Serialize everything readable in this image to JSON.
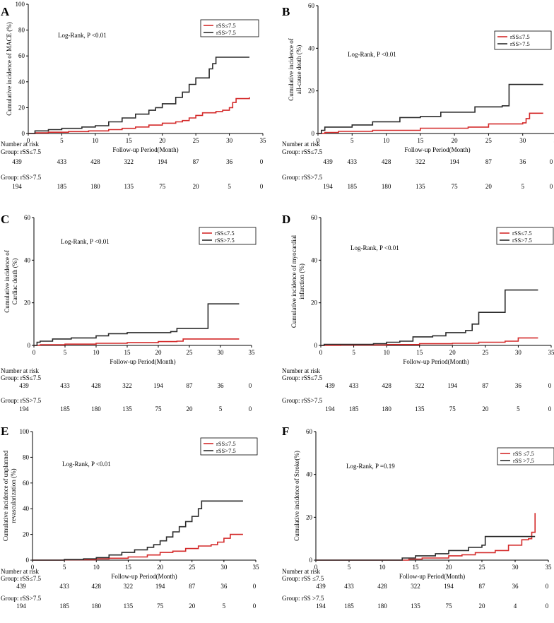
{
  "xlabel": "Follow-up Period(Month)",
  "risk_header": "Number at risk",
  "colors": {
    "low": "#d42a2a",
    "high": "#2b2b2b"
  },
  "chart_data": [
    {
      "id": "A",
      "type": "line",
      "ylabel": [
        "Cumulative incidence of MACE (%)"
      ],
      "annotation": "Log-Rank, P <0.01",
      "legend_position": "top-right",
      "xlim": [
        0,
        35
      ],
      "ylim": [
        0,
        100
      ],
      "xticks": [
        0,
        5,
        10,
        15,
        20,
        25,
        30,
        35
      ],
      "yticks": [
        0,
        20,
        40,
        60,
        80,
        100
      ],
      "series": [
        {
          "name": "rSS≤7.5",
          "color": "low",
          "points": [
            [
              0,
              0
            ],
            [
              1,
              0.5
            ],
            [
              3,
              1
            ],
            [
              6,
              1.5
            ],
            [
              9,
              2
            ],
            [
              12,
              3
            ],
            [
              14,
              4
            ],
            [
              16,
              5
            ],
            [
              18,
              6.5
            ],
            [
              20,
              8
            ],
            [
              22,
              9
            ],
            [
              23,
              10
            ],
            [
              24,
              12
            ],
            [
              25,
              14
            ],
            [
              26,
              16
            ],
            [
              28,
              17
            ],
            [
              29,
              18
            ],
            [
              30,
              20
            ],
            [
              30.5,
              24
            ],
            [
              31,
              27
            ],
            [
              33,
              28
            ]
          ]
        },
        {
          "name": "rSS>7.5",
          "color": "high",
          "points": [
            [
              0,
              0
            ],
            [
              1,
              2
            ],
            [
              3,
              3
            ],
            [
              5,
              4
            ],
            [
              8,
              5
            ],
            [
              10,
              6
            ],
            [
              12,
              9
            ],
            [
              14,
              12
            ],
            [
              16,
              15
            ],
            [
              18,
              18
            ],
            [
              19,
              20
            ],
            [
              20,
              23
            ],
            [
              22,
              28
            ],
            [
              23,
              32
            ],
            [
              24,
              38
            ],
            [
              25,
              43
            ],
            [
              26,
              43
            ],
            [
              27,
              50
            ],
            [
              27.5,
              54
            ],
            [
              28,
              59
            ],
            [
              33,
              59
            ]
          ]
        }
      ],
      "risk_groups": [
        {
          "label": "Group: rSS≤7.5",
          "values": [
            439,
            433,
            428,
            322,
            194,
            87,
            36,
            0
          ]
        },
        {
          "label": "Group: rSS>7.5",
          "values": [
            194,
            185,
            180,
            135,
            75,
            20,
            5,
            0
          ]
        }
      ]
    },
    {
      "id": "B",
      "type": "line",
      "ylabel": [
        "Cumulative incidence of",
        "all-cause death (%)"
      ],
      "annotation": "Log-Rank, P <0.01",
      "legend_position": "top-right",
      "xlim": [
        0,
        35
      ],
      "ylim": [
        0,
        60
      ],
      "xticks": [
        0,
        5,
        10,
        15,
        20,
        25,
        30,
        35
      ],
      "yticks": [
        0,
        20,
        40,
        60
      ],
      "series": [
        {
          "name": "rSS≤7.5",
          "color": "low",
          "points": [
            [
              0,
              0
            ],
            [
              1,
              0.5
            ],
            [
              3,
              1
            ],
            [
              8,
              1.5
            ],
            [
              15,
              2.5
            ],
            [
              22,
              3
            ],
            [
              25,
              4.5
            ],
            [
              30,
              5
            ],
            [
              30.5,
              7
            ],
            [
              31,
              9.5
            ],
            [
              33,
              9.5
            ]
          ]
        },
        {
          "name": "rSS>7.5",
          "color": "high",
          "points": [
            [
              0,
              0
            ],
            [
              0.5,
              1.5
            ],
            [
              1,
              3
            ],
            [
              5,
              4
            ],
            [
              8,
              5.5
            ],
            [
              12,
              7.5
            ],
            [
              15,
              8
            ],
            [
              18,
              10
            ],
            [
              23,
              12.5
            ],
            [
              27,
              13
            ],
            [
              28,
              23
            ],
            [
              33,
              23
            ]
          ]
        }
      ],
      "risk_groups": [
        {
          "label": "Group: rSS≤7.5",
          "values": [
            439,
            433,
            428,
            322,
            194,
            87,
            36,
            0
          ]
        },
        {
          "label": "Group: rSS>7.5",
          "values": [
            194,
            185,
            180,
            135,
            75,
            20,
            5,
            0
          ]
        }
      ]
    },
    {
      "id": "C",
      "type": "line",
      "ylabel": [
        "Cumulative incidence of",
        "Cardiac death (%)"
      ],
      "annotation": "Log-Rank, P <0.01",
      "legend_position": "top-right",
      "xlim": [
        0,
        35
      ],
      "ylim": [
        0,
        60
      ],
      "xticks": [
        0,
        5,
        10,
        15,
        20,
        25,
        30,
        35
      ],
      "yticks": [
        0,
        20,
        40,
        60
      ],
      "series": [
        {
          "name": "rSS≤7.5",
          "color": "low",
          "points": [
            [
              0,
              0
            ],
            [
              1,
              0.3
            ],
            [
              5,
              0.6
            ],
            [
              10,
              1
            ],
            [
              15,
              1.3
            ],
            [
              20,
              1.8
            ],
            [
              23,
              2
            ],
            [
              24,
              3
            ],
            [
              33,
              3
            ]
          ]
        },
        {
          "name": "rSS>7.5",
          "color": "high",
          "points": [
            [
              0,
              0
            ],
            [
              0.5,
              1.5
            ],
            [
              1,
              2
            ],
            [
              3,
              3
            ],
            [
              6,
              3.5
            ],
            [
              10,
              4.5
            ],
            [
              12,
              5.5
            ],
            [
              15,
              6
            ],
            [
              22,
              6.5
            ],
            [
              23,
              8
            ],
            [
              27,
              8
            ],
            [
              28,
              19.5
            ],
            [
              33,
              19.5
            ]
          ]
        }
      ],
      "risk_groups": [
        {
          "label": "Group: rSS≤7.5",
          "values": [
            439,
            433,
            428,
            322,
            194,
            87,
            36,
            0
          ]
        },
        {
          "label": "Group: rSS>7.5",
          "values": [
            194,
            185,
            180,
            135,
            75,
            20,
            5,
            0
          ]
        }
      ]
    },
    {
      "id": "D",
      "type": "line",
      "ylabel": [
        "Cumulative incidence of myocardial",
        "infarction (%)"
      ],
      "annotation": "Log-Rank, P <0.01",
      "legend_position": "top-right",
      "xlim": [
        0,
        35
      ],
      "ylim": [
        0,
        60
      ],
      "xticks": [
        0,
        5,
        10,
        15,
        20,
        25,
        30,
        35
      ],
      "yticks": [
        0,
        20,
        40,
        60
      ],
      "series": [
        {
          "name": "rSS≤7.5",
          "color": "low",
          "points": [
            [
              0,
              0
            ],
            [
              3,
              0.2
            ],
            [
              10,
              0.4
            ],
            [
              15,
              0.8
            ],
            [
              20,
              1
            ],
            [
              24,
              1.5
            ],
            [
              28,
              2
            ],
            [
              30,
              3.5
            ],
            [
              33,
              3.5
            ]
          ]
        },
        {
          "name": "rSS>7.5",
          "color": "high",
          "points": [
            [
              0,
              0
            ],
            [
              0.5,
              0.5
            ],
            [
              8,
              0.8
            ],
            [
              10,
              1.5
            ],
            [
              12,
              2
            ],
            [
              14,
              4
            ],
            [
              17,
              4.5
            ],
            [
              19,
              6
            ],
            [
              22,
              7
            ],
            [
              23,
              10
            ],
            [
              24,
              15.5
            ],
            [
              27,
              15.5
            ],
            [
              28,
              26
            ],
            [
              33,
              26
            ]
          ]
        }
      ],
      "risk_groups": [
        {
          "label": "Group: rSS≤7.5",
          "values": [
            439,
            433,
            428,
            322,
            194,
            87,
            36,
            0
          ]
        },
        {
          "label": "Group: rSS>7.5",
          "values": [
            194,
            185,
            180,
            135,
            75,
            20,
            5,
            0
          ]
        }
      ]
    },
    {
      "id": "E",
      "type": "line",
      "ylabel": [
        "Cumulative incidence of unplanned",
        "revascularization (%)"
      ],
      "annotation": "Log-Rank, P <0.01",
      "legend_position": "top-right",
      "xlim": [
        0,
        35
      ],
      "ylim": [
        0,
        100
      ],
      "xticks": [
        0,
        5,
        10,
        15,
        20,
        25,
        30,
        35
      ],
      "yticks": [
        0,
        20,
        40,
        60,
        80,
        100
      ],
      "series": [
        {
          "name": "rSS≤7.5",
          "color": "low",
          "points": [
            [
              0,
              0
            ],
            [
              5,
              0.3
            ],
            [
              10,
              1
            ],
            [
              12,
              1.5
            ],
            [
              15,
              2.5
            ],
            [
              18,
              4
            ],
            [
              20,
              6
            ],
            [
              22,
              7
            ],
            [
              24,
              9
            ],
            [
              26,
              11
            ],
            [
              28,
              12
            ],
            [
              29,
              14
            ],
            [
              30,
              17
            ],
            [
              31,
              20
            ],
            [
              33,
              20
            ]
          ]
        },
        {
          "name": "rSS>7.5",
          "color": "high",
          "points": [
            [
              0,
              0
            ],
            [
              5,
              0.5
            ],
            [
              8,
              1
            ],
            [
              10,
              2
            ],
            [
              12,
              4
            ],
            [
              14,
              6
            ],
            [
              16,
              8
            ],
            [
              18,
              10
            ],
            [
              19,
              12
            ],
            [
              20,
              15
            ],
            [
              21,
              18
            ],
            [
              22,
              22
            ],
            [
              23,
              26
            ],
            [
              24,
              30
            ],
            [
              25,
              34
            ],
            [
              26,
              40
            ],
            [
              26.5,
              46
            ],
            [
              33,
              46
            ]
          ]
        }
      ],
      "risk_groups": [
        {
          "label": "Group: rSS≤7.5",
          "values": [
            439,
            433,
            428,
            322,
            194,
            87,
            36,
            0
          ]
        },
        {
          "label": "Group: rSS>7.5",
          "values": [
            194,
            185,
            180,
            135,
            75,
            20,
            5,
            0
          ]
        }
      ]
    },
    {
      "id": "F",
      "type": "line",
      "ylabel": [
        "Cumulative incidence of Stroke(%)"
      ],
      "annotation": "Log-Rank, P =0.19",
      "legend_position": "top-right",
      "xlim": [
        0,
        35
      ],
      "ylim": [
        0,
        60
      ],
      "xticks": [
        0,
        5,
        10,
        15,
        20,
        25,
        30,
        35
      ],
      "yticks": [
        0,
        20,
        40,
        60
      ],
      "series": [
        {
          "name": "rSS ≤7.5",
          "color": "low",
          "points": [
            [
              0,
              0
            ],
            [
              12,
              0
            ],
            [
              14,
              0.5
            ],
            [
              16,
              1
            ],
            [
              20,
              2
            ],
            [
              22,
              2.5
            ],
            [
              24,
              3.5
            ],
            [
              27,
              4.5
            ],
            [
              29,
              7
            ],
            [
              31,
              9.5
            ],
            [
              32,
              10
            ],
            [
              32.5,
              13
            ],
            [
              33,
              22
            ]
          ]
        },
        {
          "name": "rSS >7.5",
          "color": "high",
          "points": [
            [
              0,
              0
            ],
            [
              12,
              0
            ],
            [
              13,
              1
            ],
            [
              15,
              2
            ],
            [
              18,
              3
            ],
            [
              20,
              4.5
            ],
            [
              23,
              6
            ],
            [
              25,
              7
            ],
            [
              25.5,
              11
            ],
            [
              33,
              11
            ]
          ]
        }
      ],
      "risk_groups": [
        {
          "label": "Group: rSS ≤7.5",
          "values": [
            439,
            433,
            428,
            322,
            194,
            87,
            36,
            0
          ]
        },
        {
          "label": "Group: rSS >7.5",
          "values": [
            194,
            185,
            180,
            135,
            75,
            20,
            4,
            0
          ]
        }
      ]
    }
  ]
}
